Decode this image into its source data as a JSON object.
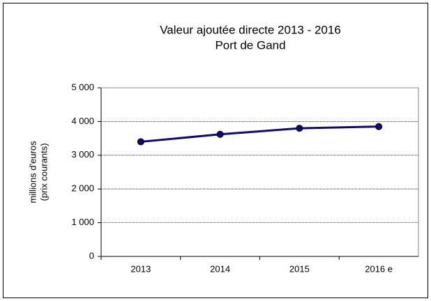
{
  "chart_data": {
    "type": "line",
    "title": "Valeur ajoutée directe 2013 - 2016",
    "subtitle": "Port de Gand",
    "ylabel": [
      "millions d'euros",
      "(prix courants)"
    ],
    "categories": [
      "2013",
      "2014",
      "2015",
      "2016 e"
    ],
    "series": [
      {
        "name": "Valeur ajoutée directe",
        "color": "#0a0a78",
        "values": [
          3400,
          3620,
          3800,
          3850
        ]
      }
    ],
    "ylim": [
      0,
      5000
    ],
    "yticks": [
      0,
      {
        "value": 1000,
        "label": "1 000"
      },
      {
        "value": 2000,
        "label": "2 000"
      },
      {
        "value": 3000,
        "label": "3 000"
      },
      {
        "value": 4000,
        "label": "4 000"
      },
      {
        "value": 5000,
        "label": "5 000"
      }
    ],
    "grid": true
  }
}
